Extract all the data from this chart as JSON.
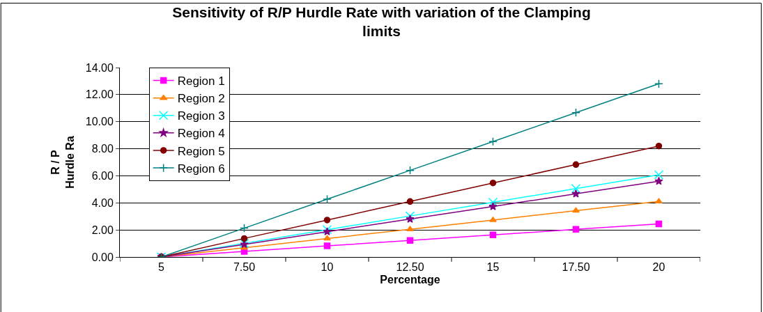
{
  "chart_data": {
    "type": "line",
    "title": "Sensitivity of R/P Hurdle Rate with variation of the Clamping limits",
    "xlabel": "Percentage",
    "ylabel": "R / P\nHurdle Ra",
    "categories": [
      "5",
      "7.50",
      "10",
      "12.50",
      "15",
      "17.50",
      "20"
    ],
    "ylim": [
      0,
      14
    ],
    "yticks": [
      {
        "value": 0,
        "label": "0.00"
      },
      {
        "value": 2,
        "label": "2.00"
      },
      {
        "value": 4,
        "label": "4.00"
      },
      {
        "value": 6,
        "label": "6.00"
      },
      {
        "value": 8,
        "label": "8.00"
      },
      {
        "value": 10,
        "label": "10.00"
      },
      {
        "value": 12,
        "label": "12.00"
      },
      {
        "value": 14,
        "label": "14.00"
      }
    ],
    "grid": "y",
    "legend": "top left",
    "series": [
      {
        "name": "Region 1",
        "color": "#ff00ff",
        "marker": "square",
        "values": [
          0,
          0.41,
          0.82,
          1.22,
          1.63,
          2.04,
          2.45
        ]
      },
      {
        "name": "Region 2",
        "color": "#ff8000",
        "marker": "triangle",
        "values": [
          0,
          0.68,
          1.37,
          2.05,
          2.73,
          3.42,
          4.1
        ]
      },
      {
        "name": "Region 3",
        "color": "#00ffff",
        "marker": "x",
        "values": [
          0,
          1.01,
          2.02,
          3.03,
          4.04,
          5.06,
          6.07
        ]
      },
      {
        "name": "Region 4",
        "color": "#800080",
        "marker": "star",
        "values": [
          0,
          0.93,
          1.87,
          2.8,
          3.73,
          4.67,
          5.6
        ]
      },
      {
        "name": "Region 5",
        "color": "#800000",
        "marker": "circle",
        "values": [
          0,
          1.37,
          2.73,
          4.1,
          5.47,
          6.83,
          8.2
        ]
      },
      {
        "name": "Region 6",
        "color": "#008080",
        "marker": "cross",
        "values": [
          0,
          2.13,
          4.27,
          6.4,
          8.53,
          10.67,
          12.8
        ]
      }
    ]
  }
}
